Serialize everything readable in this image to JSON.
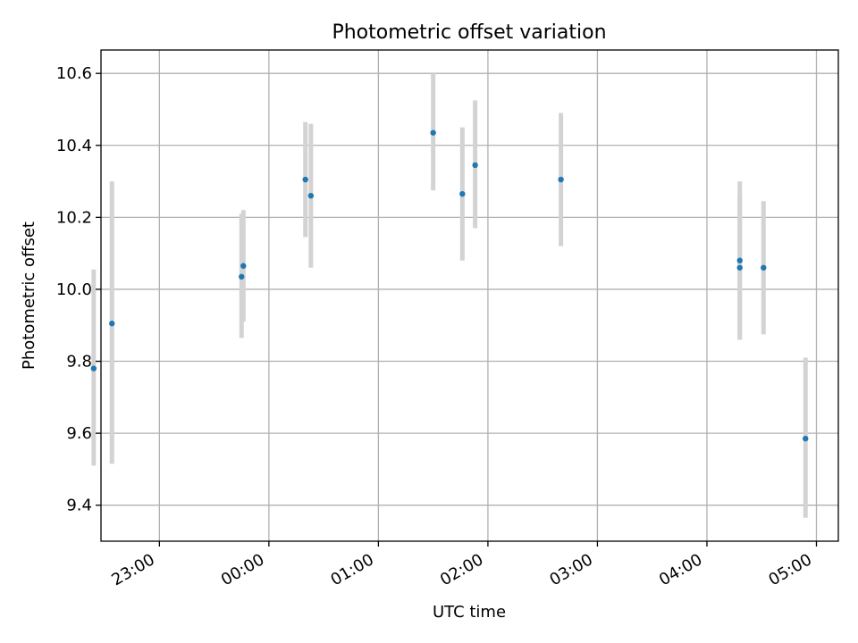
{
  "chart_data": {
    "type": "scatter",
    "title": "Photometric offset variation",
    "xlabel": "UTC time",
    "ylabel": "Photometric offset",
    "x_axis_kind": "time",
    "xlim": [
      "22:28",
      "05:12"
    ],
    "ylim": [
      9.3,
      10.665
    ],
    "grid": true,
    "x_ticks": [
      "23:00",
      "00:00",
      "01:00",
      "02:00",
      "03:00",
      "04:00",
      "05:00"
    ],
    "y_ticks": [
      9.4,
      9.6,
      9.8,
      10.0,
      10.2,
      10.4,
      10.6
    ],
    "point_color": "#1f77b4",
    "errorbar_color": "#d3d3d3",
    "points": [
      {
        "x": "22:24",
        "y": 9.78,
        "lo": 9.51,
        "hi": 10.055
      },
      {
        "x": "22:34",
        "y": 9.905,
        "lo": 9.515,
        "hi": 10.3
      },
      {
        "x": "23:45",
        "y": 10.035,
        "lo": 9.865,
        "hi": 10.21
      },
      {
        "x": "23:46",
        "y": 10.065,
        "lo": 9.91,
        "hi": 10.22
      },
      {
        "x": "00:20",
        "y": 10.305,
        "lo": 10.145,
        "hi": 10.465
      },
      {
        "x": "00:23",
        "y": 10.26,
        "lo": 10.06,
        "hi": 10.46
      },
      {
        "x": "01:30",
        "y": 10.435,
        "lo": 10.275,
        "hi": 10.6
      },
      {
        "x": "01:46",
        "y": 10.265,
        "lo": 10.08,
        "hi": 10.45
      },
      {
        "x": "01:53",
        "y": 10.345,
        "lo": 10.17,
        "hi": 10.525
      },
      {
        "x": "02:40",
        "y": 10.305,
        "lo": 10.12,
        "hi": 10.49
      },
      {
        "x": "04:18",
        "y": 10.08,
        "lo": 9.86,
        "hi": 10.3
      },
      {
        "x": "04:18",
        "y": 10.06,
        "lo": 9.86,
        "hi": 10.26
      },
      {
        "x": "04:31",
        "y": 10.06,
        "lo": 9.875,
        "hi": 10.245
      },
      {
        "x": "04:54",
        "y": 9.585,
        "lo": 9.365,
        "hi": 9.81
      }
    ]
  }
}
